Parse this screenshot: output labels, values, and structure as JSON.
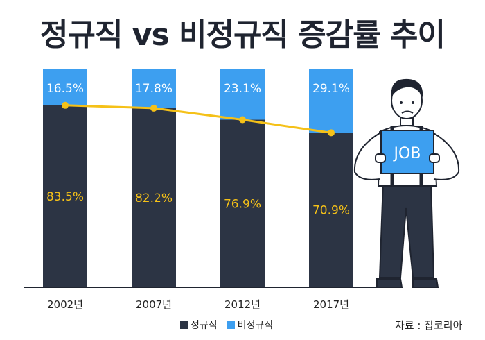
{
  "title": "정규직 vs 비정규직 증감률 추이",
  "source": "자료 : 잡코리아",
  "colors": {
    "regular": "#2c3444",
    "irregular": "#3d9ff0",
    "line": "#f5c118"
  },
  "legend": [
    {
      "label": "정규직",
      "color": "#2c3444"
    },
    {
      "label": "비정규직",
      "color": "#3d9ff0"
    }
  ],
  "illustration": {
    "sign_text": "JOB"
  },
  "chart_data": {
    "type": "bar",
    "stacked": true,
    "categories": [
      "2002년",
      "2007년",
      "2012년",
      "2017년"
    ],
    "series": [
      {
        "name": "정규직",
        "values": [
          83.5,
          82.2,
          76.9,
          70.9
        ],
        "labels": [
          "83.5%",
          "82.2%",
          "76.9%",
          "70.9%"
        ]
      },
      {
        "name": "비정규직",
        "values": [
          16.5,
          17.8,
          23.1,
          29.1
        ],
        "labels": [
          "16.5%",
          "17.8%",
          "23.1%",
          "29.1%"
        ]
      }
    ],
    "line_overlay": {
      "series": "정규직",
      "values": [
        83.5,
        82.2,
        76.9,
        70.9
      ]
    },
    "ylim": [
      0,
      100
    ],
    "grid": false,
    "legend_position": "bottom"
  }
}
